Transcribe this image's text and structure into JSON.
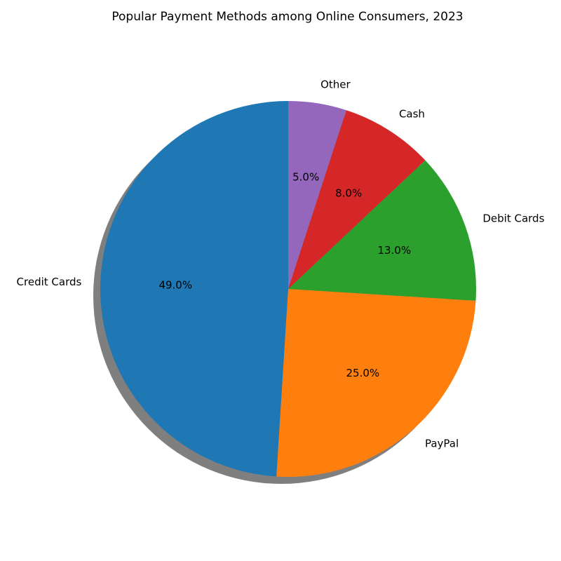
{
  "chart_data": {
    "type": "pie",
    "title": "Popular Payment Methods among Online Consumers, 2023",
    "categories": [
      "Credit Cards",
      "PayPal",
      "Debit Cards",
      "Cash",
      "Other"
    ],
    "values": [
      49.0,
      25.0,
      13.0,
      8.0,
      5.0
    ],
    "percent_labels": [
      "49.0%",
      "25.0%",
      "13.0%",
      "8.0%",
      "5.0%"
    ],
    "colors": [
      "#1f77b4",
      "#ff7f0e",
      "#2ca02c",
      "#d62728",
      "#9467bd"
    ],
    "start_angle_deg": 90,
    "direction": "counterclockwise",
    "shadow": true,
    "legend": "none"
  }
}
